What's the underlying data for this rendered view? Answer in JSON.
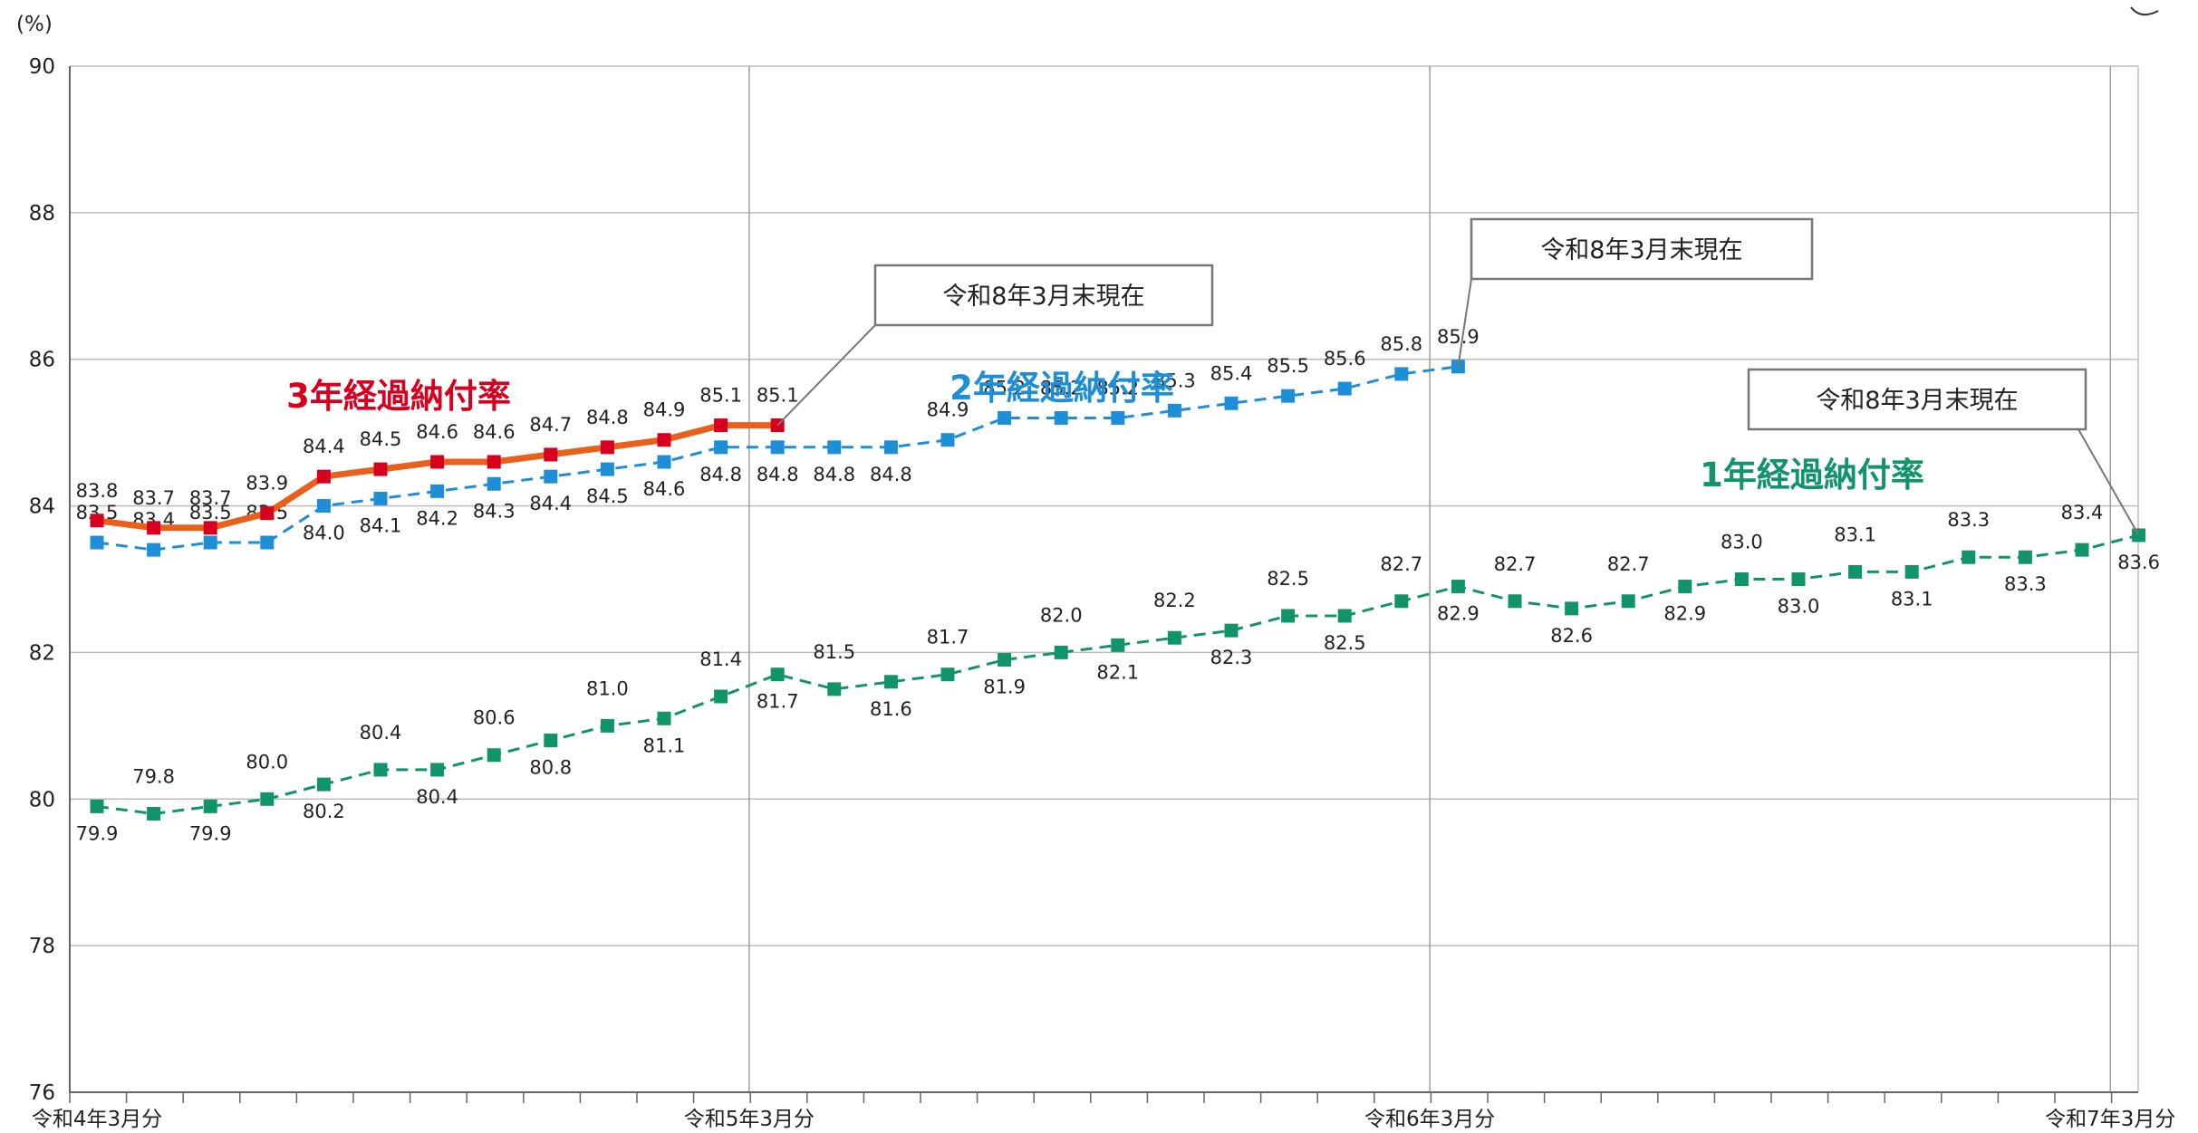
{
  "chart_data": {
    "type": "line",
    "ylabel": "(%)",
    "ylim": [
      76,
      90
    ],
    "yticks": [
      "76",
      "78",
      "80",
      "82",
      "84",
      "86",
      "88",
      "90"
    ],
    "x_tick_labels": [
      "令和4年3月分",
      "令和5年3月分",
      "令和6年3月分",
      "令和7年3月分"
    ],
    "grid": true,
    "series": [
      {
        "name": "3年経過納付率",
        "color": "#e8601c",
        "marker_color": "#d7001f",
        "label_color": "#d7001f",
        "style": "solid",
        "start_index": 0,
        "values": [
          83.8,
          83.7,
          83.7,
          83.9,
          84.4,
          84.5,
          84.6,
          84.6,
          84.7,
          84.8,
          84.9,
          85.1,
          85.1
        ],
        "labels": [
          "83.8",
          "83.7",
          "83.7",
          "83.9",
          "84.4",
          "84.5",
          "84.6",
          "84.6",
          "84.7",
          "84.8",
          "84.9",
          "85.1",
          "85.1"
        ],
        "callout": "令和8年3月末現在"
      },
      {
        "name": "2年経過納付率",
        "color": "#1e8fd6",
        "marker_color": "#1e8fd6",
        "label_color": "#1e8fd6",
        "style": "dashed",
        "start_index": 0,
        "values": [
          83.5,
          83.4,
          83.5,
          83.5,
          84.0,
          84.1,
          84.2,
          84.3,
          84.4,
          84.5,
          84.6,
          84.8,
          84.8,
          84.8,
          84.8,
          84.9,
          85.2,
          85.2,
          85.2,
          85.3,
          85.4,
          85.5,
          85.6,
          85.8,
          85.9
        ],
        "labels": [
          "83.5",
          "83.4",
          "83.5",
          "83.5",
          "84.0",
          "84.1",
          "84.2",
          "84.3",
          "84.4",
          "84.5",
          "84.6",
          "84.8",
          "84.8",
          "84.8",
          "84.8",
          "84.9",
          "85.2",
          "85.2",
          "85.2",
          "85.3",
          "85.4",
          "85.5",
          "85.6",
          "85.8",
          "85.9"
        ],
        "callout": "令和8年3月末現在"
      },
      {
        "name": "1年経過納付率",
        "color": "#12946a",
        "marker_color": "#12946a",
        "label_color": "#12946a",
        "style": "dashed",
        "start_index": 0,
        "values": [
          79.9,
          79.8,
          79.9,
          80.0,
          80.2,
          80.4,
          80.4,
          80.6,
          80.8,
          81.0,
          81.1,
          81.4,
          81.7,
          81.5,
          81.6,
          81.7,
          81.9,
          82.0,
          82.1,
          82.2,
          82.3,
          82.5,
          82.5,
          82.7,
          82.9,
          82.7,
          82.6,
          82.7,
          82.9,
          83.0,
          83.0,
          83.1,
          83.1,
          83.3,
          83.3,
          83.4,
          83.6
        ],
        "labels": [
          "79.9",
          "79.8",
          "79.9",
          "80.0",
          "80.2",
          "80.4",
          "80.4",
          "80.6",
          "80.8",
          "81.0",
          "81.1",
          "81.4",
          "81.7",
          "81.5",
          "81.6",
          "81.7",
          "81.9",
          "82.0",
          "82.1",
          "82.2",
          "82.3",
          "82.5",
          "82.5",
          "82.7",
          "82.9",
          "82.7",
          "82.6",
          "82.7",
          "82.9",
          "83.0",
          "83.0",
          "83.1",
          "83.1",
          "83.3",
          "83.3",
          "83.4",
          "83.6"
        ],
        "callout": "令和8年3月末現在"
      }
    ]
  }
}
